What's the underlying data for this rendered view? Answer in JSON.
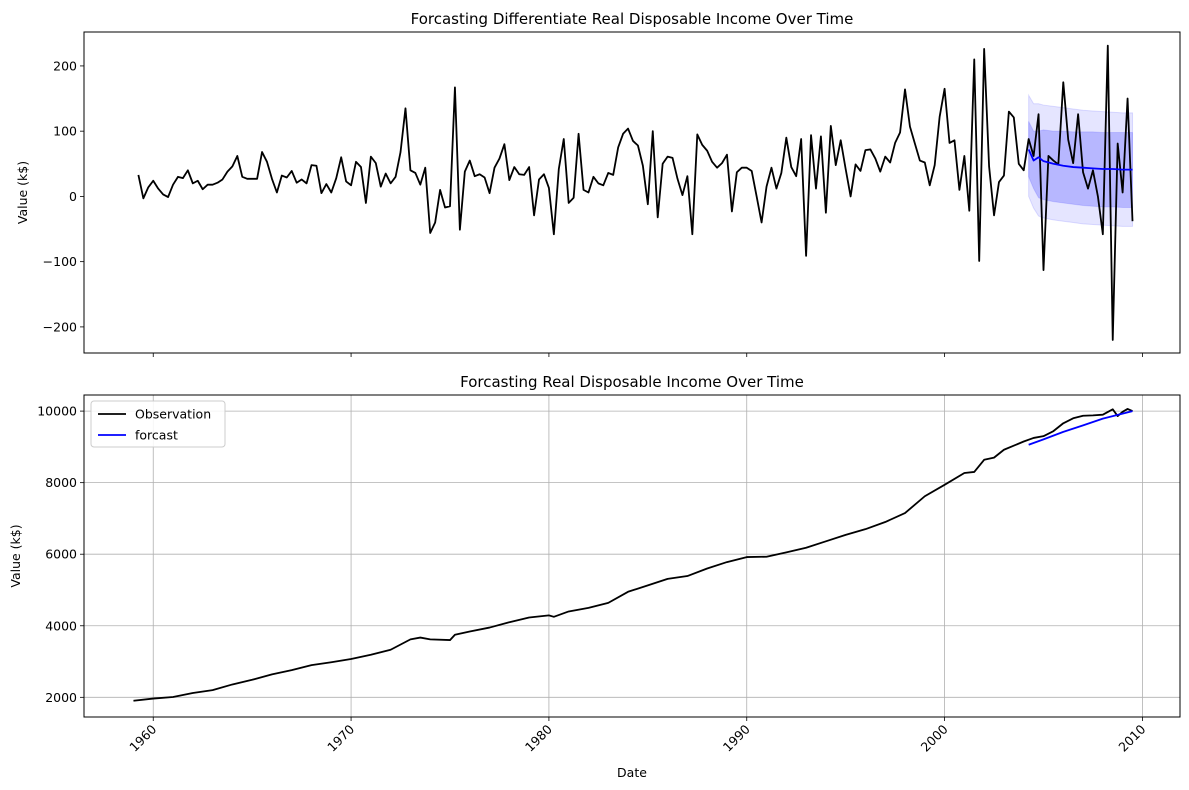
{
  "chart_data": [
    {
      "type": "line",
      "title": "Forcasting Differentiate Real Disposable Income Over Time",
      "xlabel": "",
      "ylabel": "Value (k$)",
      "xlim": [
        1956.5,
        2011.9
      ],
      "ylim": [
        -240,
        252
      ],
      "yticks": [
        -200,
        -100,
        0,
        100,
        200
      ],
      "ytick_labels": [
        "−200",
        "−100",
        "0",
        "100",
        "200"
      ],
      "xticks": [
        1960,
        1970,
        1980,
        1990,
        2000,
        2010
      ],
      "grid": false,
      "legend": "none",
      "series": [
        {
          "role": "observation",
          "color": "#000000",
          "x": [
            1959.25,
            1959.5,
            1959.75,
            1960.0,
            1960.25,
            1960.5,
            1960.75,
            1961.0,
            1961.25,
            1961.5,
            1961.75,
            1962.0,
            1962.25,
            1962.5,
            1962.75,
            1963.0,
            1963.25,
            1963.5,
            1963.75,
            1964.0,
            1964.25,
            1964.5,
            1964.75,
            1965.0,
            1965.25,
            1965.5,
            1965.75,
            1966.0,
            1966.25,
            1966.5,
            1966.75,
            1967.0,
            1967.25,
            1967.5,
            1967.75,
            1968.0,
            1968.25,
            1968.5,
            1968.75,
            1969.0,
            1969.25,
            1969.5,
            1969.75,
            1970.0,
            1970.25,
            1970.5,
            1970.75,
            1971.0,
            1971.25,
            1971.5,
            1971.75,
            1972.0,
            1972.25,
            1972.5,
            1972.75,
            1973.0,
            1973.25,
            1973.5,
            1973.75,
            1974.0,
            1974.25,
            1974.5,
            1974.75,
            1975.0,
            1975.25,
            1975.5,
            1975.75,
            1976.0,
            1976.25,
            1976.5,
            1976.75,
            1977.0,
            1977.25,
            1977.5,
            1977.75,
            1978.0,
            1978.25,
            1978.5,
            1978.75,
            1979.0,
            1979.25,
            1979.5,
            1979.75,
            1980.0,
            1980.25,
            1980.5,
            1980.75,
            1981.0,
            1981.25,
            1981.5,
            1981.75,
            1982.0,
            1982.25,
            1982.5,
            1982.75,
            1983.0,
            1983.25,
            1983.5,
            1983.75,
            1984.0,
            1984.25,
            1984.5,
            1984.75,
            1985.0,
            1985.25,
            1985.5,
            1985.75,
            1986.0,
            1986.25,
            1986.5,
            1986.75,
            1987.0,
            1987.25,
            1987.5,
            1987.75,
            1988.0,
            1988.25,
            1988.5,
            1988.75,
            1989.0,
            1989.25,
            1989.5,
            1989.75,
            1990.0,
            1990.25,
            1990.5,
            1990.75,
            1991.0,
            1991.25,
            1991.5,
            1991.75,
            1992.0,
            1992.25,
            1992.5,
            1992.75,
            1993.0,
            1993.25,
            1993.5,
            1993.75,
            1994.0,
            1994.25,
            1994.5,
            1994.75,
            1995.0,
            1995.25,
            1995.5,
            1995.75,
            1996.0,
            1996.25,
            1996.5,
            1996.75,
            1997.0,
            1997.25,
            1997.5,
            1997.75,
            1998.0,
            1998.25,
            1998.5,
            1998.75,
            1999.0,
            1999.25,
            1999.5,
            1999.75,
            2000.0,
            2000.25,
            2000.5,
            2000.75,
            2001.0,
            2001.25,
            2001.5,
            2001.75,
            2002.0,
            2002.25,
            2002.5,
            2002.75,
            2003.0,
            2003.25,
            2003.5,
            2003.75,
            2004.0,
            2004.25,
            2004.5,
            2004.75,
            2005.0,
            2005.25,
            2005.5,
            2005.75,
            2006.0,
            2006.25,
            2006.5,
            2006.75,
            2007.0,
            2007.25,
            2007.5,
            2007.75,
            2008.0,
            2008.25,
            2008.5,
            2008.75,
            2009.0,
            2009.25,
            2009.5
          ],
          "y": [
            33,
            -3,
            14,
            24,
            12,
            3,
            -1,
            18,
            30,
            28,
            40,
            20,
            24,
            11,
            18,
            18,
            21,
            26,
            38,
            46,
            62,
            30,
            27,
            27,
            27,
            68,
            53,
            27,
            6,
            32,
            29,
            39,
            21,
            26,
            20,
            48,
            47,
            5,
            19,
            6,
            28,
            60,
            23,
            17,
            53,
            45,
            -10,
            61,
            51,
            15,
            35,
            20,
            30,
            68,
            135,
            40,
            36,
            18,
            44,
            -56,
            -40,
            10,
            -17,
            -15,
            167,
            -51,
            38,
            55,
            31,
            34,
            29,
            5,
            44,
            58,
            80,
            25,
            45,
            34,
            33,
            45,
            -29,
            26,
            34,
            13,
            -58,
            42,
            88,
            -10,
            -2,
            96,
            10,
            6,
            30,
            20,
            17,
            36,
            33,
            75,
            96,
            104,
            85,
            78,
            47,
            -12,
            100,
            -32,
            50,
            61,
            59,
            27,
            2,
            31,
            -58,
            95,
            79,
            70,
            53,
            44,
            51,
            64,
            -23,
            37,
            44,
            44,
            39,
            0,
            -40,
            15,
            44,
            12,
            36,
            90,
            45,
            31,
            88,
            -91,
            94,
            12,
            92,
            -25,
            108,
            48,
            86,
            42,
            0,
            49,
            39,
            71,
            72,
            58,
            38,
            61,
            52,
            82,
            98,
            164,
            107,
            81,
            55,
            52,
            17,
            48,
            122,
            165,
            82,
            86,
            10,
            62,
            -22,
            210,
            -99,
            226,
            46,
            -29,
            22,
            32,
            130,
            121,
            50,
            40,
            88,
            62,
            126,
            -113,
            62,
            55,
            49,
            175,
            87,
            51,
            126,
            37,
            12,
            40,
            0,
            -58,
            231,
            -220,
            81,
            6,
            150,
            -38
          ]
        },
        {
          "role": "forecast",
          "color": "#0000ff",
          "x": [
            2004.25,
            2004.5,
            2004.75,
            2005.0,
            2005.5,
            2006.0,
            2006.5,
            2007.0,
            2007.5,
            2008.0,
            2008.5,
            2009.0,
            2009.5
          ],
          "y": [
            72,
            55,
            60,
            54,
            50,
            47,
            45,
            44,
            43,
            42,
            42,
            41,
            41
          ],
          "band_80": [
            [
              30,
              115
            ],
            [
              12,
              100
            ],
            [
              -2,
              100
            ],
            [
              -5,
              102
            ],
            [
              -8,
              100
            ],
            [
              -10,
              100
            ],
            [
              -12,
              99
            ],
            [
              -14,
              99
            ],
            [
              -15,
              99
            ],
            [
              -16,
              98
            ],
            [
              -16,
              98
            ],
            [
              -17,
              98
            ],
            [
              -17,
              98
            ]
          ],
          "band_95": [
            [
              0,
              155
            ],
            [
              -18,
              142
            ],
            [
              -30,
              142
            ],
            [
              -33,
              140
            ],
            [
              -36,
              138
            ],
            [
              -38,
              136
            ],
            [
              -40,
              134
            ],
            [
              -42,
              132
            ],
            [
              -43,
              131
            ],
            [
              -44,
              130
            ],
            [
              -45,
              129
            ],
            [
              -46,
              128
            ],
            [
              -46,
              128
            ]
          ]
        }
      ]
    },
    {
      "type": "line",
      "title": "Forcasting Real Disposable Income Over Time",
      "xlabel": "Date",
      "ylabel": "Value (k$)",
      "xlim": [
        1956.5,
        2011.9
      ],
      "ylim": [
        1450,
        10450
      ],
      "yticks": [
        2000,
        4000,
        6000,
        8000,
        10000
      ],
      "xticks": [
        1960,
        1970,
        1980,
        1990,
        2000,
        2010
      ],
      "grid": true,
      "legend": "top-left",
      "series": [
        {
          "name": "Observation",
          "color": "#000000",
          "x": [
            1959,
            1960,
            1961,
            1962,
            1963,
            1964,
            1965,
            1966,
            1967,
            1968,
            1969,
            1970,
            1971,
            1972,
            1973,
            1973.5,
            1974,
            1975,
            1975.25,
            1976,
            1977,
            1978,
            1979,
            1980,
            1980.25,
            1981,
            1982,
            1983,
            1984,
            1985,
            1986,
            1987,
            1988,
            1989,
            1990,
            1991,
            1992,
            1993,
            1994,
            1995,
            1996,
            1997,
            1998,
            1999,
            2000,
            2001,
            2001.5,
            2002,
            2002.5,
            2003,
            2004,
            2004.5,
            2005,
            2005.5,
            2006,
            2006.5,
            2007,
            2007.5,
            2008,
            2008.5,
            2008.75,
            2009,
            2009.25,
            2009.5
          ],
          "y": [
            1905,
            1965,
            2010,
            2120,
            2200,
            2360,
            2490,
            2640,
            2760,
            2900,
            2980,
            3070,
            3190,
            3330,
            3620,
            3670,
            3620,
            3600,
            3750,
            3840,
            3950,
            4100,
            4230,
            4290,
            4250,
            4400,
            4500,
            4640,
            4950,
            5130,
            5310,
            5390,
            5600,
            5780,
            5920,
            5930,
            6050,
            6180,
            6360,
            6540,
            6700,
            6900,
            7150,
            7620,
            7940,
            8270,
            8300,
            8640,
            8700,
            8920,
            9150,
            9250,
            9300,
            9440,
            9660,
            9800,
            9870,
            9880,
            9900,
            10050,
            9860,
            9980,
            10060,
            10000
          ]
        },
        {
          "name": "forcast",
          "color": "#0000ff",
          "x": [
            2004.25,
            2005,
            2006,
            2007,
            2008,
            2009,
            2009.5
          ],
          "y": [
            9060,
            9210,
            9420,
            9600,
            9790,
            9930,
            10000
          ]
        }
      ]
    }
  ]
}
